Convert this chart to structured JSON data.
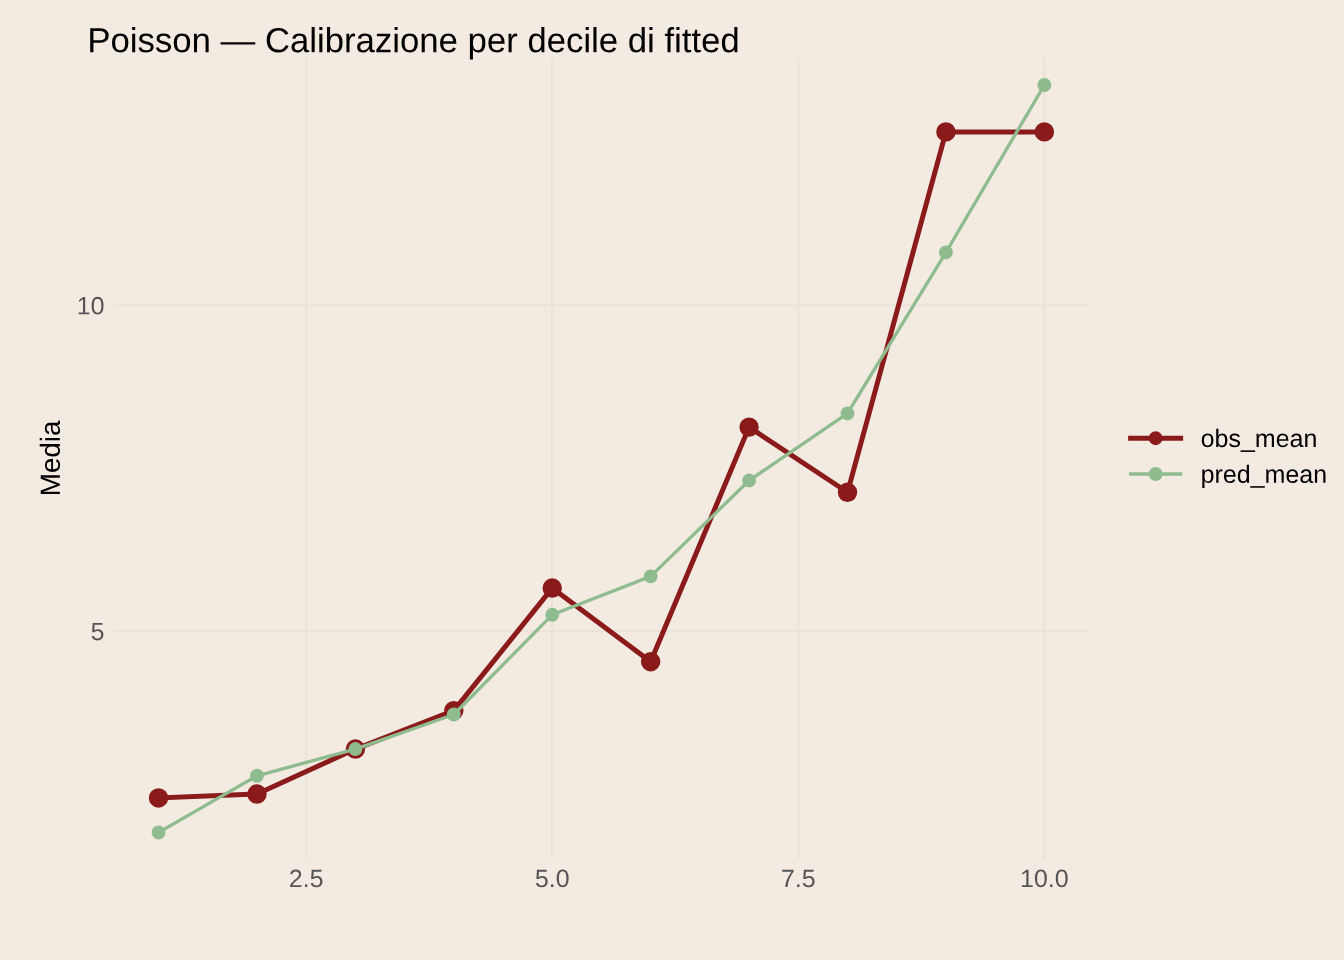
{
  "chart_data": {
    "type": "line",
    "title": "Poisson — Calibrazione per decile di fitted",
    "ylabel": "Media",
    "x": [
      1,
      2,
      3,
      4,
      5,
      6,
      7,
      8,
      9,
      10
    ],
    "series": [
      {
        "name": "obs_mean",
        "color": "#8b1a1a",
        "values": [
          2.44,
          2.5,
          3.19,
          3.78,
          5.66,
          4.53,
          8.13,
          7.13,
          12.66,
          12.66
        ]
      },
      {
        "name": "pred_mean",
        "color": "#8fbc8f",
        "values": [
          1.91,
          2.78,
          3.19,
          3.72,
          5.25,
          5.84,
          7.31,
          8.34,
          10.81,
          13.38
        ]
      }
    ],
    "xlim": [
      0.55,
      10.45
    ],
    "ylim": [
      1.5,
      13.8
    ],
    "xticks": [
      {
        "value": 2.5,
        "label": "2.5"
      },
      {
        "value": 5,
        "label": "5.0"
      },
      {
        "value": 7.5,
        "label": "7.5"
      },
      {
        "value": 10,
        "label": "10.0"
      }
    ],
    "yticks": [
      5,
      10
    ],
    "grid": true,
    "legend": "right",
    "marker": "circle",
    "line_style": "solid"
  }
}
